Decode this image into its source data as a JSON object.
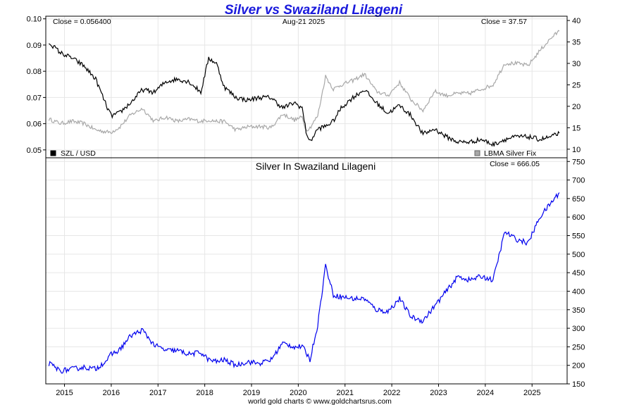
{
  "title": "Silver vs Swaziland Lilageni",
  "footer": "world gold charts © www.goldchartsrus.com",
  "chart_data": [
    {
      "type": "line",
      "panel": "top",
      "date_label": "Aug-21  2025",
      "close_left": "Close = 0.056400",
      "close_right": "Close = 37.57",
      "left_axis": {
        "ticks": [
          "0.05",
          "0.06",
          "0.07",
          "0.08",
          "0.09",
          "0.10"
        ],
        "ylim": [
          0.047,
          0.101
        ]
      },
      "right_axis": {
        "ticks": [
          "10",
          "15",
          "20",
          "25",
          "30",
          "35",
          "40"
        ],
        "ylim": [
          8,
          41
        ]
      },
      "legend": {
        "left": "SZL / USD",
        "right": "LBMA Silver Fix"
      },
      "colors": {
        "szl": "#000000",
        "silver": "#a8a8a8"
      },
      "x": [
        "2014-09",
        "2014-12",
        "2015-03",
        "2015-06",
        "2015-09",
        "2015-12",
        "2016-01",
        "2016-03",
        "2016-06",
        "2016-09",
        "2016-12",
        "2017-03",
        "2017-06",
        "2017-09",
        "2017-12",
        "2018-02",
        "2018-04",
        "2018-06",
        "2018-09",
        "2018-12",
        "2019-03",
        "2019-06",
        "2019-09",
        "2019-12",
        "2020-02",
        "2020-03",
        "2020-04",
        "2020-06",
        "2020-08",
        "2020-10",
        "2020-12",
        "2021-03",
        "2021-06",
        "2021-09",
        "2021-12",
        "2022-03",
        "2022-06",
        "2022-09",
        "2022-12",
        "2023-03",
        "2023-06",
        "2023-09",
        "2023-12",
        "2024-03",
        "2024-06",
        "2024-09",
        "2024-12",
        "2025-03",
        "2025-06",
        "2025-08"
      ],
      "series": [
        {
          "name": "SZL / USD",
          "axis": "left",
          "values": [
            0.091,
            0.087,
            0.085,
            0.082,
            0.077,
            0.066,
            0.063,
            0.064,
            0.068,
            0.073,
            0.072,
            0.076,
            0.077,
            0.076,
            0.072,
            0.085,
            0.083,
            0.074,
            0.07,
            0.069,
            0.07,
            0.07,
            0.066,
            0.068,
            0.066,
            0.057,
            0.053,
            0.058,
            0.059,
            0.061,
            0.066,
            0.07,
            0.073,
            0.068,
            0.064,
            0.067,
            0.063,
            0.056,
            0.058,
            0.055,
            0.053,
            0.053,
            0.054,
            0.052,
            0.054,
            0.055,
            0.055,
            0.054,
            0.055,
            0.0564
          ]
        },
        {
          "name": "LBMA Silver Fix",
          "axis": "right",
          "values": [
            17.0,
            16.0,
            16.5,
            16.0,
            14.5,
            14.0,
            14.0,
            15.0,
            18.0,
            19.5,
            16.5,
            17.5,
            16.5,
            17.0,
            16.5,
            16.8,
            16.5,
            16.5,
            14.5,
            15.2,
            15.3,
            15.0,
            18.2,
            16.8,
            17.5,
            14.5,
            15.0,
            17.8,
            27.0,
            24.0,
            25.0,
            26.0,
            27.5,
            23.5,
            22.5,
            25.5,
            21.5,
            19.0,
            23.5,
            22.5,
            23.0,
            23.0,
            24.0,
            25.0,
            30.0,
            30.0,
            29.5,
            33.0,
            36.0,
            37.57
          ]
        }
      ]
    },
    {
      "type": "line",
      "panel": "bottom",
      "title": "Silver In Swaziland Lilageni",
      "close_right": "Close = 666.05",
      "x_ticks": [
        "2015",
        "2016",
        "2017",
        "2018",
        "2019",
        "2020",
        "2021",
        "2022",
        "2023",
        "2024",
        "2025"
      ],
      "y_ticks": [
        "150",
        "200",
        "250",
        "300",
        "350",
        "400",
        "450",
        "500",
        "550",
        "600",
        "650",
        "700",
        "750"
      ],
      "ylim": [
        150,
        760
      ],
      "color": "#0000ee",
      "x": [
        "2014-09",
        "2014-12",
        "2015-03",
        "2015-06",
        "2015-09",
        "2015-12",
        "2016-01",
        "2016-03",
        "2016-06",
        "2016-09",
        "2016-12",
        "2017-03",
        "2017-06",
        "2017-09",
        "2017-12",
        "2018-02",
        "2018-04",
        "2018-06",
        "2018-09",
        "2018-12",
        "2019-03",
        "2019-06",
        "2019-09",
        "2019-12",
        "2020-02",
        "2020-03",
        "2020-04",
        "2020-06",
        "2020-08",
        "2020-10",
        "2020-12",
        "2021-03",
        "2021-06",
        "2021-09",
        "2021-12",
        "2022-03",
        "2022-06",
        "2022-09",
        "2022-12",
        "2023-03",
        "2023-06",
        "2023-09",
        "2023-12",
        "2024-03",
        "2024-06",
        "2024-09",
        "2024-12",
        "2025-03",
        "2025-06",
        "2025-08"
      ],
      "series": [
        {
          "name": "Silver In Swaziland Lilageni",
          "values": [
            205,
            185,
            190,
            195,
            190,
            215,
            230,
            240,
            280,
            295,
            255,
            240,
            240,
            230,
            235,
            215,
            210,
            215,
            200,
            210,
            205,
            215,
            260,
            250,
            250,
            235,
            215,
            310,
            470,
            390,
            385,
            380,
            380,
            350,
            345,
            380,
            330,
            320,
            360,
            400,
            440,
            430,
            440,
            430,
            560,
            540,
            530,
            600,
            640,
            666
          ]
        }
      ]
    }
  ]
}
